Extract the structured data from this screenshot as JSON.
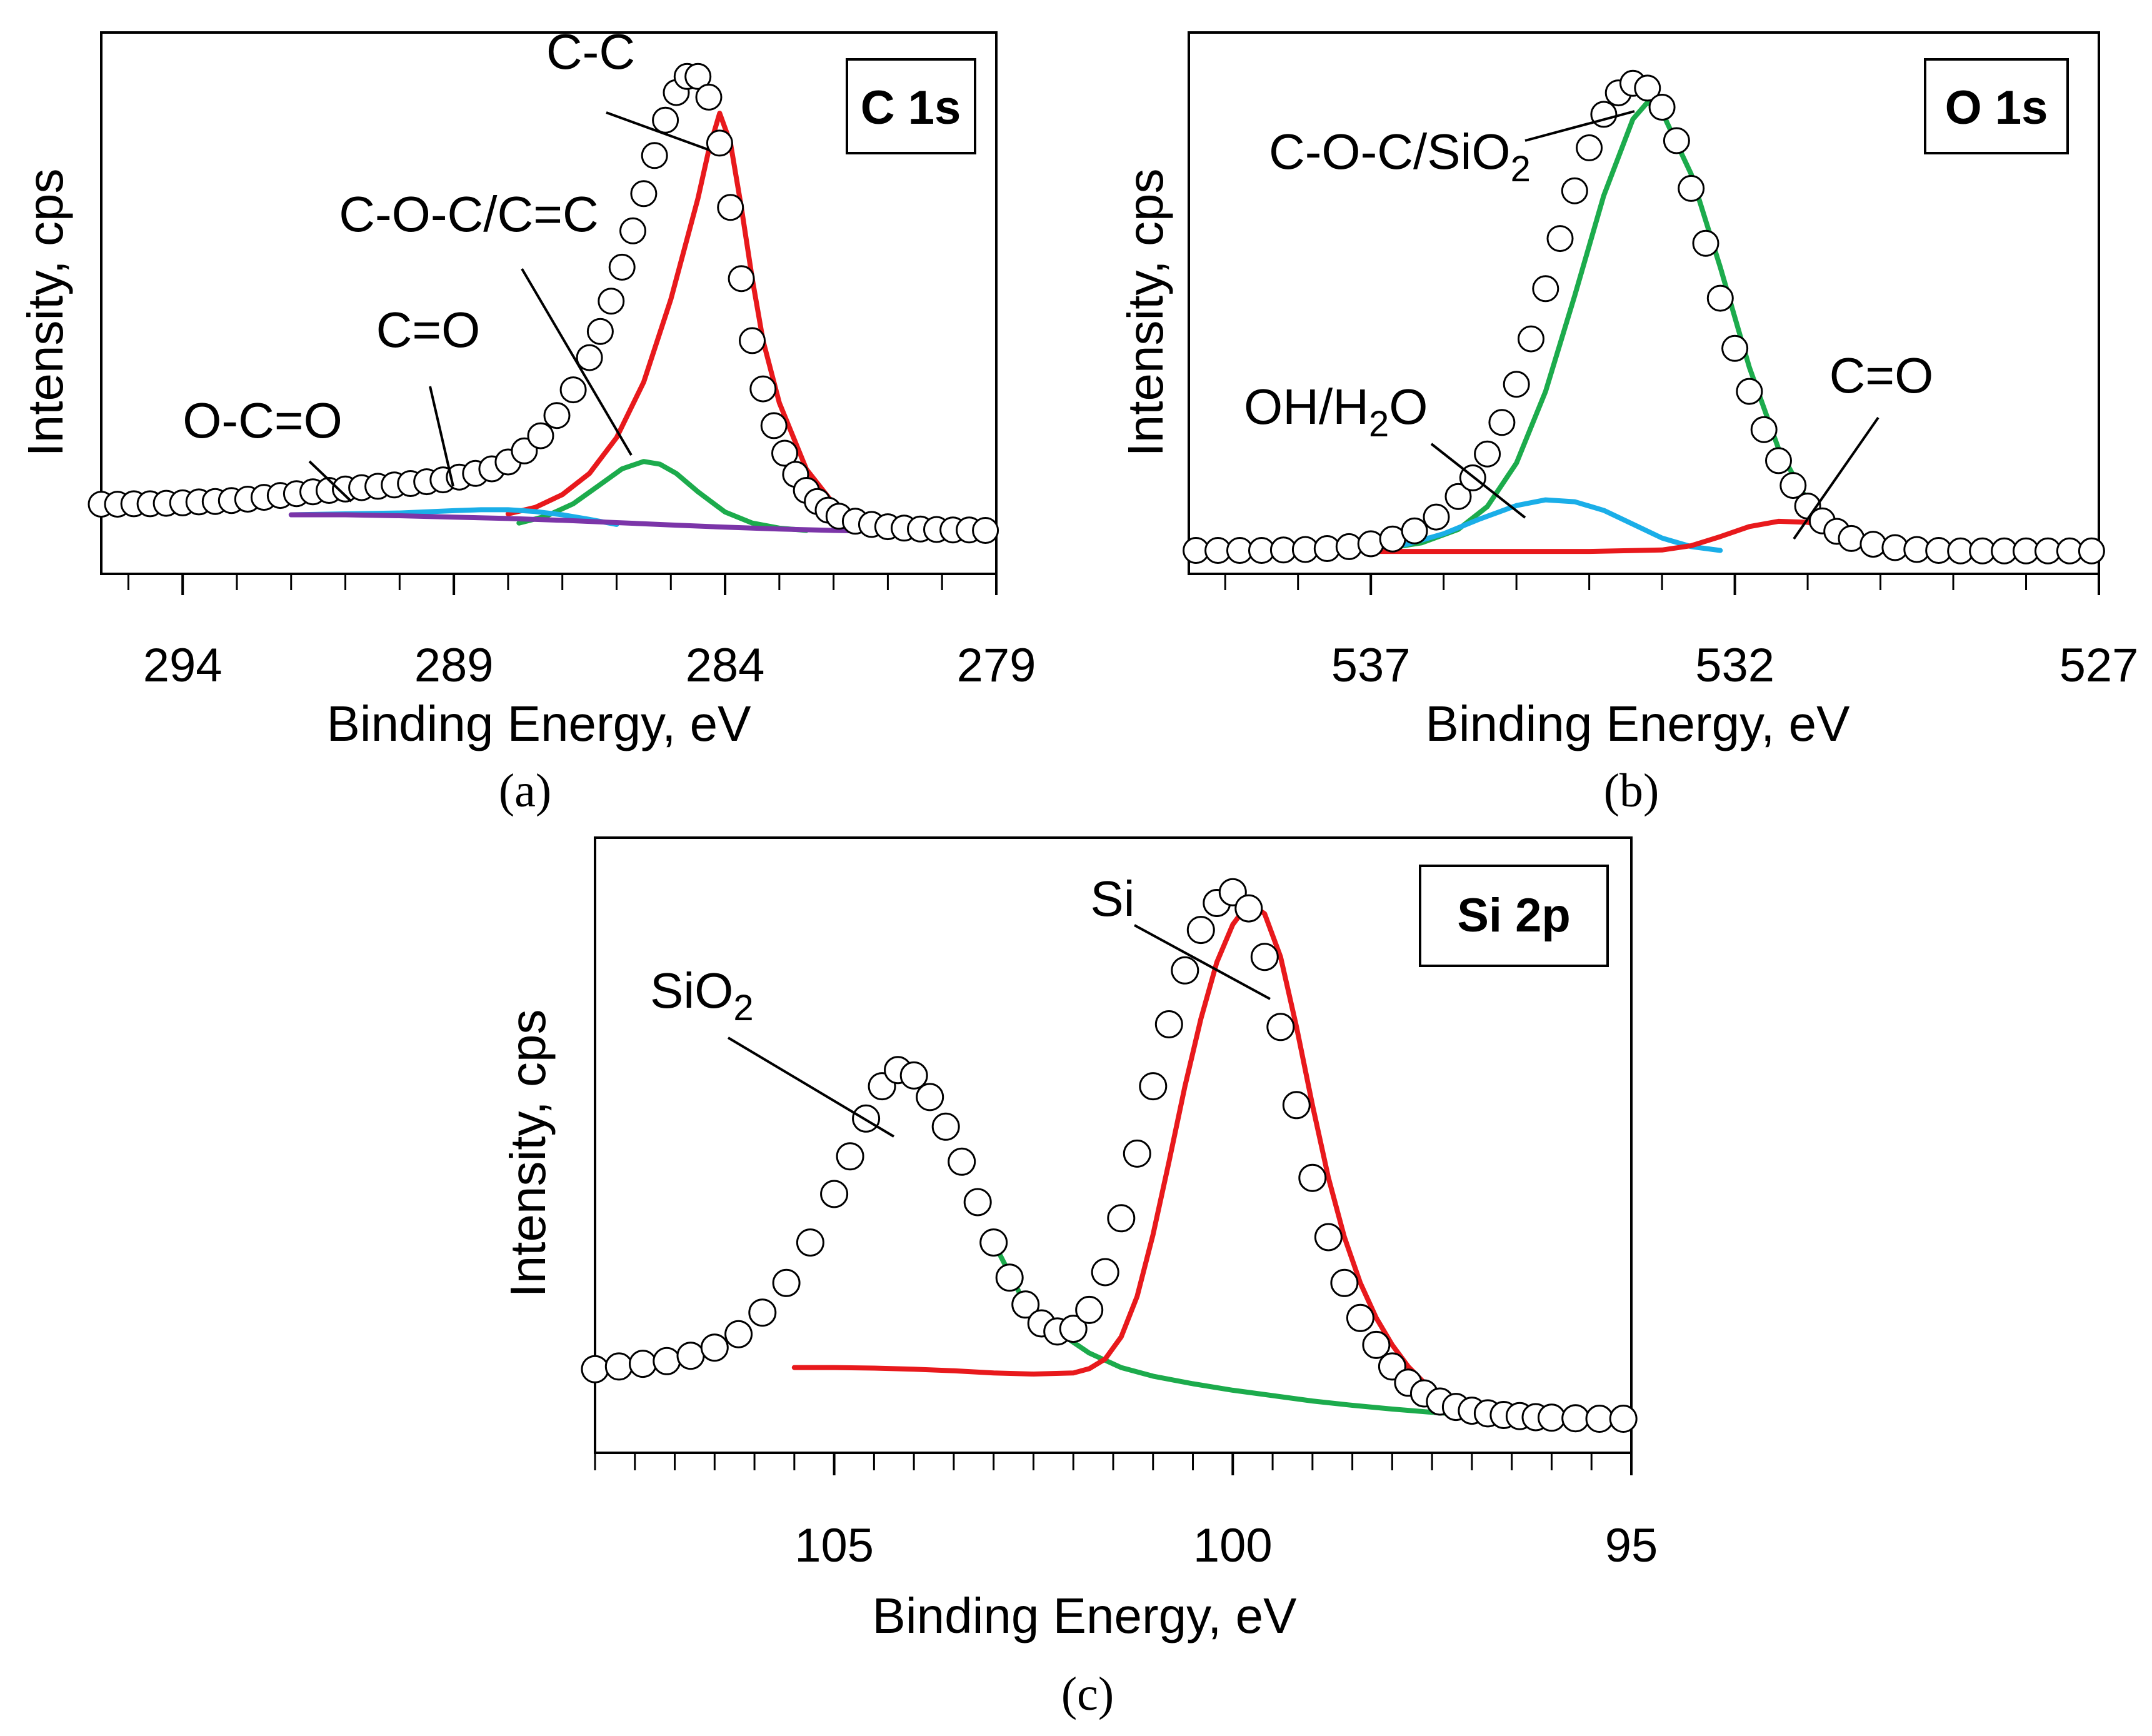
{
  "figure": {
    "panel_labels": [
      "(a)",
      "(b)",
      "(c)"
    ]
  },
  "chart_data": [
    {
      "type": "line",
      "id": "c1s",
      "title": "C 1s",
      "xlabel": "Binding Energy, eV",
      "ylabel": "Intensity, cps",
      "xlim": [
        295.5,
        279
      ],
      "ylim": [
        -3,
        100
      ],
      "xticks": [
        294,
        289,
        284,
        279
      ],
      "xticks_minor": [
        295,
        293,
        292,
        291,
        290,
        288,
        287,
        286,
        285,
        283,
        282,
        281,
        280
      ],
      "grid": false,
      "colors": {
        "data": "#000000",
        "c-c": "#e8191c",
        "c-o-c": "#1cab4c",
        "c-o": "#1aaee8",
        "o-c-o": "#7b35a8",
        "background": "#7b35a8"
      },
      "series": [
        {
          "name": "data",
          "style": "open-circle",
          "x": [
            295.5,
            295.2,
            294.9,
            294.6,
            294.3,
            294.0,
            293.7,
            293.4,
            293.1,
            292.8,
            292.5,
            292.2,
            291.9,
            291.6,
            291.3,
            291.0,
            290.7,
            290.4,
            290.1,
            289.8,
            289.5,
            289.2,
            288.9,
            288.6,
            288.3,
            288.0,
            287.7,
            287.4,
            287.1,
            286.8,
            286.5,
            286.3,
            286.1,
            285.9,
            285.7,
            285.5,
            285.3,
            285.1,
            284.9,
            284.7,
            284.5,
            284.3,
            284.1,
            283.9,
            283.7,
            283.5,
            283.3,
            283.1,
            282.9,
            282.7,
            282.5,
            282.3,
            282.1,
            281.9,
            281.6,
            281.3,
            281.0,
            280.7,
            280.4,
            280.1,
            279.8,
            279.5,
            279.2
          ],
          "y": [
            5.9,
            5.9,
            6.0,
            6.0,
            6.1,
            6.2,
            6.4,
            6.5,
            6.7,
            7.0,
            7.4,
            7.8,
            8.2,
            8.6,
            8.9,
            9.2,
            9.5,
            9.8,
            10.1,
            10.4,
            10.8,
            11.2,
            11.8,
            12.6,
            13.6,
            15.1,
            17.5,
            20.8,
            25.2,
            30.8,
            37.8,
            43.5,
            50.1,
            57.5,
            65.4,
            73.5,
            81.8,
            89.5,
            95.5,
            99.0,
            99.0,
            94.5,
            84.5,
            70.5,
            55.0,
            41.5,
            31.0,
            23.0,
            17.0,
            12.4,
            8.9,
            6.5,
            4.6,
            3.3,
            2.2,
            1.5,
            1.0,
            0.7,
            0.5,
            0.4,
            0.3,
            0.3,
            0.2
          ]
        },
        {
          "name": "C-C",
          "x": [
            288.0,
            287.5,
            287.0,
            286.5,
            286.0,
            285.5,
            285.0,
            284.5,
            284.3,
            284.1,
            283.9,
            283.7,
            283.5,
            283.3,
            283.0,
            282.5,
            282.0,
            281.5,
            281.0,
            280.5
          ],
          "y": [
            3.8,
            5.2,
            8.0,
            12.6,
            20.4,
            32.5,
            50.5,
            72.5,
            83.0,
            91.0,
            84.5,
            70.5,
            55.0,
            41.5,
            28.0,
            13.5,
            6.0,
            2.6,
            1.0,
            0.2
          ]
        },
        {
          "name": "C-O-C/C=C",
          "x": [
            287.8,
            287.3,
            286.8,
            286.3,
            285.9,
            285.5,
            285.2,
            284.9,
            284.5,
            284.0,
            283.5,
            283.0,
            282.5
          ],
          "y": [
            1.8,
            3.3,
            6.0,
            10.2,
            13.6,
            15.2,
            14.6,
            12.6,
            8.6,
            4.2,
            1.8,
            0.7,
            0.2
          ]
        },
        {
          "name": "C=O",
          "x": [
            292.0,
            291.0,
            290.0,
            289.0,
            288.5,
            288.0,
            287.5,
            287.0,
            286.5,
            286.0
          ],
          "y": [
            3.6,
            3.8,
            4.0,
            4.5,
            4.7,
            4.7,
            4.3,
            3.6,
            2.6,
            1.5
          ]
        },
        {
          "name": "O-C=O / background",
          "x": [
            292.0,
            291.0,
            290.0,
            289.0,
            288.0,
            287.0,
            286.0,
            285.0,
            284.0,
            283.0,
            282.0,
            281.0
          ],
          "y": [
            3.6,
            3.6,
            3.4,
            3.1,
            2.8,
            2.4,
            1.9,
            1.4,
            0.9,
            0.5,
            0.2,
            0.0
          ]
        }
      ],
      "annotations": [
        "C-C",
        "C-O-C/C=C",
        "C=O",
        "O-C=O"
      ]
    },
    {
      "type": "line",
      "id": "o1s",
      "title": "O 1s",
      "xlabel": "Binding Energy, eV",
      "ylabel": "Intensity, cps",
      "xlim": [
        539.5,
        527
      ],
      "ylim": [
        -3,
        100
      ],
      "xticks": [
        537,
        532,
        527
      ],
      "xticks_minor": [
        539,
        538,
        536,
        535,
        534,
        533,
        531,
        530,
        529,
        528
      ],
      "grid": false,
      "colors": {
        "data": "#000000",
        "c-o-c-sio2": "#1cab4c",
        "oh-h2o": "#1aaee8",
        "c-o": "#e8191c"
      },
      "series": [
        {
          "name": "data",
          "style": "open-circle",
          "x": [
            539.4,
            539.1,
            538.8,
            538.5,
            538.2,
            537.9,
            537.6,
            537.3,
            537.0,
            536.7,
            536.4,
            536.1,
            535.8,
            535.6,
            535.4,
            535.2,
            535.0,
            534.8,
            534.6,
            534.4,
            534.2,
            534.0,
            533.8,
            533.6,
            533.4,
            533.2,
            533.0,
            532.8,
            532.6,
            532.4,
            532.2,
            532.0,
            531.8,
            531.6,
            531.4,
            531.2,
            531.0,
            530.8,
            530.6,
            530.4,
            530.1,
            529.8,
            529.5,
            529.2,
            528.9,
            528.6,
            528.3,
            528.0,
            527.7,
            527.4,
            527.1
          ],
          "y": [
            0.2,
            0.2,
            0.2,
            0.2,
            0.3,
            0.4,
            0.6,
            1.0,
            1.6,
            2.6,
            4.3,
            7.2,
            11.5,
            15.4,
            20.4,
            27.0,
            35.0,
            44.5,
            55.0,
            65.5,
            75.5,
            84.5,
            91.5,
            96.0,
            98.0,
            97.0,
            93.0,
            86.0,
            76.0,
            64.5,
            53.0,
            42.5,
            33.5,
            25.5,
            19.0,
            13.8,
            9.5,
            6.4,
            4.2,
            2.7,
            1.5,
            0.8,
            0.4,
            0.2,
            0.1,
            0.1,
            0.1,
            0.1,
            0.1,
            0.1,
            0.1
          ]
        },
        {
          "name": "C-O-C/SiO2",
          "x": [
            536.8,
            536.3,
            535.8,
            535.4,
            535.0,
            534.6,
            534.2,
            533.8,
            533.4,
            533.2,
            533.0,
            532.6,
            532.2,
            531.8,
            531.4,
            531.0,
            530.6,
            530.2,
            529.8
          ],
          "y": [
            0.6,
            1.8,
            4.6,
            9.4,
            18.5,
            33.5,
            53.5,
            74.5,
            90.5,
            94.0,
            92.0,
            79.0,
            59.5,
            38.5,
            21.5,
            10.5,
            4.4,
            1.5,
            0.4
          ]
        },
        {
          "name": "OH/H2O",
          "x": [
            537.0,
            536.5,
            536.0,
            535.5,
            535.0,
            534.6,
            534.2,
            533.8,
            533.4,
            533.0,
            532.6,
            532.2
          ],
          "y": [
            0.4,
            1.5,
            3.7,
            6.8,
            9.6,
            10.8,
            10.4,
            8.6,
            5.7,
            2.8,
            1.0,
            0.2
          ]
        },
        {
          "name": "C=O",
          "x": [
            537.0,
            536.0,
            535.0,
            534.0,
            533.0,
            532.6,
            532.2,
            531.8,
            531.4,
            531.0,
            530.6,
            530.2,
            529.8
          ],
          "y": [
            0.0,
            0.0,
            0.0,
            0.0,
            0.3,
            1.2,
            3.1,
            5.2,
            6.3,
            6.1,
            4.6,
            2.5,
            0.9
          ]
        }
      ],
      "annotations": [
        "C-O-C/SiO2",
        "OH/H2O",
        "C=O"
      ]
    },
    {
      "type": "line",
      "id": "si2p",
      "title": "Si 2p",
      "xlabel": "Binding Energy, eV",
      "ylabel": "Intensity, cps",
      "xlim": [
        108,
        95
      ],
      "ylim": [
        -3,
        100
      ],
      "xticks": [
        105,
        100,
        95
      ],
      "xticks_minor": [
        108,
        107.5,
        107,
        106.5,
        106,
        105.5,
        104.5,
        104,
        103.5,
        103,
        102.5,
        102,
        101.5,
        101,
        100.5,
        99.5,
        99,
        98.5,
        98,
        97.5,
        97,
        96.5,
        96,
        95.5
      ],
      "grid": false,
      "colors": {
        "data": "#000000",
        "sio2": "#1cab4c",
        "si": "#e8191c"
      },
      "series": [
        {
          "name": "data",
          "style": "open-circle",
          "x": [
            108.0,
            107.7,
            107.4,
            107.1,
            106.8,
            106.5,
            106.2,
            105.9,
            105.6,
            105.3,
            105.0,
            104.8,
            104.6,
            104.4,
            104.2,
            104.0,
            103.8,
            103.6,
            103.4,
            103.2,
            103.0,
            102.8,
            102.6,
            102.4,
            102.2,
            102.0,
            101.8,
            101.6,
            101.4,
            101.2,
            101.0,
            100.8,
            100.6,
            100.4,
            100.2,
            100.0,
            99.8,
            99.6,
            99.4,
            99.2,
            99.0,
            98.8,
            98.6,
            98.4,
            98.2,
            98.0,
            97.8,
            97.6,
            97.4,
            97.2,
            97.0,
            96.8,
            96.6,
            96.4,
            96.2,
            96.0,
            95.7,
            95.4,
            95.1
          ],
          "y": [
            9.5,
            10.0,
            10.5,
            11.0,
            12.0,
            13.5,
            16.0,
            20.0,
            25.5,
            33.0,
            42.0,
            49.0,
            56.0,
            62.0,
            65.0,
            64.0,
            60.0,
            54.5,
            48.0,
            40.5,
            33.0,
            26.5,
            21.5,
            18.0,
            16.5,
            17.0,
            20.5,
            27.5,
            37.5,
            49.5,
            62.0,
            73.5,
            83.5,
            91.0,
            96.0,
            98.0,
            95.0,
            86.0,
            73.0,
            58.5,
            45.0,
            34.0,
            25.5,
            19.0,
            14.0,
            10.0,
            7.0,
            5.0,
            3.5,
            2.5,
            1.8,
            1.3,
            1.0,
            0.8,
            0.6,
            0.5,
            0.4,
            0.3,
            0.3
          ]
        },
        {
          "name": "SiO2",
          "x": [
            103.0,
            102.6,
            102.2,
            101.8,
            101.4,
            101.0,
            100.5,
            100.0,
            99.5,
            99.0,
            98.5,
            98.0,
            97.5,
            97.0,
            96.5,
            96.0
          ],
          "y": [
            33.0,
            21.5,
            16.5,
            12.5,
            9.8,
            8.2,
            6.8,
            5.6,
            4.6,
            3.6,
            2.8,
            2.1,
            1.5,
            1.0,
            0.6,
            0.3
          ]
        },
        {
          "name": "Si",
          "x": [
            105.5,
            105.0,
            104.5,
            104.0,
            103.5,
            103.0,
            102.5,
            102.0,
            101.8,
            101.6,
            101.4,
            101.2,
            101.0,
            100.8,
            100.6,
            100.4,
            100.2,
            100.0,
            99.8,
            99.6,
            99.4,
            99.2,
            99.0,
            98.8,
            98.6,
            98.4,
            98.2,
            98.0,
            97.8,
            97.6,
            97.4,
            97.2,
            97.0,
            96.8
          ],
          "y": [
            9.8,
            9.8,
            9.7,
            9.5,
            9.2,
            8.8,
            8.6,
            8.8,
            9.6,
            11.4,
            15.5,
            23.0,
            34.5,
            48.0,
            62.0,
            74.5,
            85.0,
            92.0,
            96.0,
            94.0,
            86.0,
            73.0,
            58.5,
            45.0,
            34.0,
            25.5,
            19.0,
            14.0,
            10.0,
            7.0,
            5.0,
            3.5,
            2.5,
            1.8
          ]
        }
      ],
      "annotations": [
        "SiO2",
        "Si"
      ]
    }
  ]
}
